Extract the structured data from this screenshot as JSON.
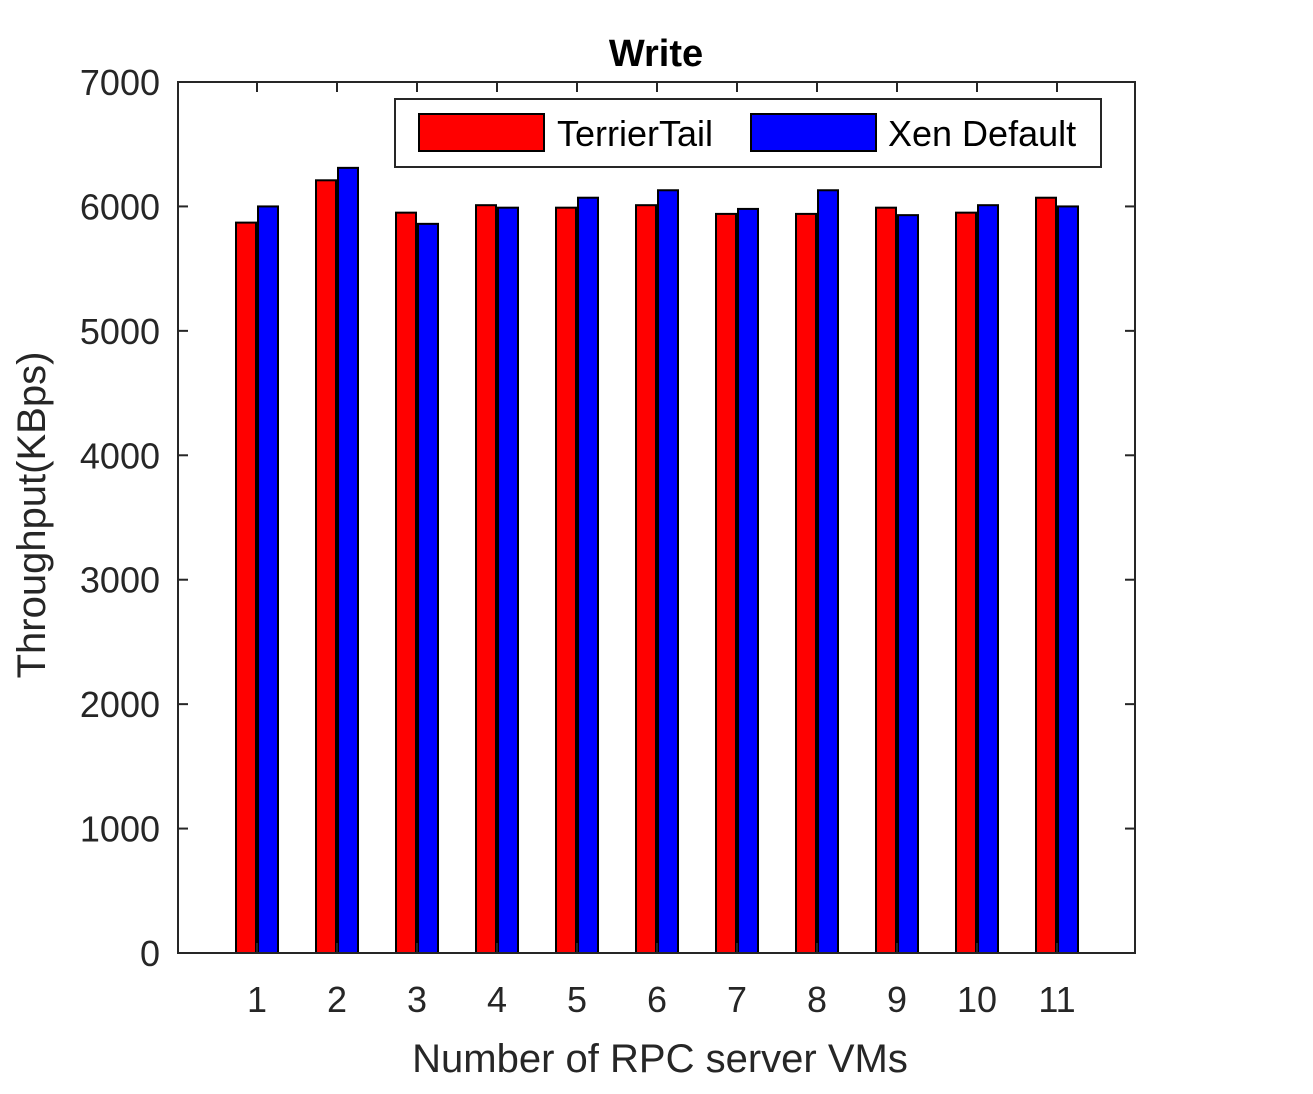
{
  "chart_data": {
    "type": "bar",
    "title": "Write",
    "xlabel": "Number of RPC server VMs",
    "ylabel": "Throughput(KBps)",
    "categories": [
      "1",
      "2",
      "3",
      "4",
      "5",
      "6",
      "7",
      "8",
      "9",
      "10",
      "11"
    ],
    "series": [
      {
        "name": "TerrierTail",
        "color": "#ff0000",
        "values": [
          5870,
          6210,
          5950,
          6010,
          5990,
          6010,
          5940,
          5940,
          5990,
          5950,
          6070
        ]
      },
      {
        "name": "Xen Default",
        "color": "#0000ff",
        "values": [
          6000,
          6310,
          5860,
          5990,
          6070,
          6130,
          5980,
          6130,
          5930,
          6010,
          6000
        ]
      }
    ],
    "ylim": [
      0,
      7000
    ],
    "yticks": [
      "0",
      "1000",
      "2000",
      "3000",
      "4000",
      "5000",
      "6000",
      "7000"
    ],
    "grid": false,
    "legend_position": "top-right"
  }
}
